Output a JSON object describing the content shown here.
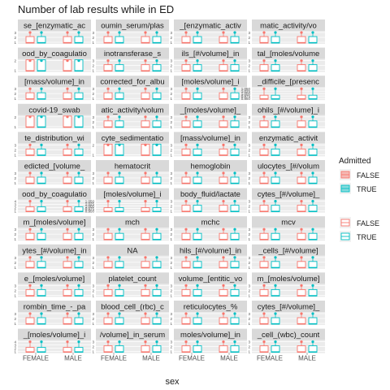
{
  "chart_data": {
    "type": "boxplot-facets",
    "title": "Number of lab results while in ED",
    "xlabel": "sex",
    "categories": [
      "FEMALE",
      "MALE"
    ],
    "groups": [
      "FALSE",
      "TRUE"
    ],
    "colors": {
      "FALSE": "#F8766D",
      "TRUE": "#00BFC4"
    },
    "legend": {
      "title": "Admitted",
      "position": "right",
      "items": [
        "FALSE",
        "TRUE"
      ]
    },
    "panels": [
      {
        "label": "se_[enzymatic_ac",
        "ticks": [
          "3",
          "2",
          "1"
        ]
      },
      {
        "label": "oumin_serum/plas",
        "ticks": [
          "3",
          "2",
          "1"
        ]
      },
      {
        "label": "_[enzymatic_activ",
        "ticks": [
          "3",
          "2",
          "1"
        ]
      },
      {
        "label": "matic_activity/vo",
        "ticks": [
          "3",
          "2",
          "1"
        ]
      },
      {
        "label": "ood_by_coagulatio",
        "ticks": [
          "2",
          "1"
        ]
      },
      {
        "label": "inotransferase_s",
        "ticks": [
          "3",
          "2",
          "1"
        ]
      },
      {
        "label": "ils_[#/volume]_in",
        "ticks": [
          "3",
          "2",
          "1"
        ]
      },
      {
        "label": "tal_[moles/volume",
        "ticks": [
          "3",
          "2",
          "1"
        ]
      },
      {
        "label": "[mass/volume]_in",
        "ticks": [
          "3",
          "2",
          "1"
        ]
      },
      {
        "label": "corrected_for_albu",
        "ticks": [
          "3",
          "2",
          "1"
        ]
      },
      {
        "label": "[moles/volume]_i",
        "ticks": [
          "3",
          "2",
          "1"
        ]
      },
      {
        "label": "_difficile_[presenc",
        "ticks": [
          "1.050",
          "1.025",
          "1.000",
          "0.975",
          "0.950"
        ]
      },
      {
        "label": "covid-19_swab",
        "ticks": [
          "2",
          "1"
        ]
      },
      {
        "label": "atic_activity/volum",
        "ticks": [
          "3",
          "2",
          "1"
        ]
      },
      {
        "label": "_[moles/volume]_",
        "ticks": [
          "3",
          "2",
          "1"
        ]
      },
      {
        "label": "ohils_[#/volume]_i",
        "ticks": [
          "3",
          "2",
          "1"
        ]
      },
      {
        "label": "te_distribution_wi",
        "ticks": [
          "3",
          "2",
          "1"
        ]
      },
      {
        "label": "cyte_sedimentatio",
        "ticks": [
          "2",
          "1"
        ]
      },
      {
        "label": "[mass/volume]_in",
        "ticks": [
          "3",
          "2",
          "1"
        ]
      },
      {
        "label": "enzymatic_activit",
        "ticks": [
          "3",
          "2",
          "1"
        ]
      },
      {
        "label": "edicted_[volume_",
        "ticks": [
          "3",
          "2",
          "1"
        ]
      },
      {
        "label": "hematocrit",
        "ticks": [
          "3",
          "2",
          "1"
        ]
      },
      {
        "label": "hemoglobin",
        "ticks": [
          "3",
          "2",
          "1"
        ]
      },
      {
        "label": "ulocytes_[#/volum",
        "ticks": [
          "3",
          "2",
          "1"
        ]
      },
      {
        "label": "ood_by_coagulatio",
        "ticks": [
          "4",
          "3",
          "2",
          "1"
        ]
      },
      {
        "label": "[moles/volume]_i",
        "ticks": [
          "1.050",
          "1.025",
          "1.000",
          "0.975",
          "0.950"
        ]
      },
      {
        "label": "body_fluid/lactate",
        "ticks": [
          "3",
          "2",
          "1"
        ]
      },
      {
        "label": "cytes_[#/volume]_",
        "ticks": [
          "3",
          "2",
          "1"
        ]
      },
      {
        "label": "m_[moles/volume]",
        "ticks": [
          "3",
          "2",
          "1"
        ]
      },
      {
        "label": "mch",
        "ticks": [
          "3",
          "2",
          "1"
        ]
      },
      {
        "label": "mchc",
        "ticks": [
          "3",
          "2",
          "1"
        ]
      },
      {
        "label": "mcv",
        "ticks": [
          "3",
          "2",
          "1"
        ]
      },
      {
        "label": "ytes_[#/volume]_in",
        "ticks": [
          "3",
          "2",
          "1"
        ]
      },
      {
        "label": "NA",
        "ticks": [
          "3",
          "2",
          "1"
        ]
      },
      {
        "label": "hils_[#/volume]_in",
        "ticks": [
          "3",
          "2",
          "1"
        ]
      },
      {
        "label": "_cells_[#/volume]",
        "ticks": [
          "3",
          "2",
          "1"
        ]
      },
      {
        "label": "e_[moles/volume]",
        "ticks": [
          "3",
          "2",
          "1"
        ]
      },
      {
        "label": "platelet_count",
        "ticks": [
          "3",
          "2",
          "1"
        ]
      },
      {
        "label": "volume_[entitic_vo",
        "ticks": [
          "3",
          "2",
          "1"
        ]
      },
      {
        "label": "m_[moles/volume]",
        "ticks": [
          "3",
          "2",
          "1"
        ]
      },
      {
        "label": "rombin_time_-_pa",
        "ticks": [
          "3",
          "2",
          "1"
        ]
      },
      {
        "label": "blood_cell_(rbc)_c",
        "ticks": [
          "3",
          "2",
          "1"
        ]
      },
      {
        "label": "reticulocytes_%",
        "ticks": [
          "3",
          "2",
          "1"
        ]
      },
      {
        "label": "cytes_[#/volume]_",
        "ticks": [
          "3",
          "2",
          "1"
        ]
      },
      {
        "label": "_[moles/volume]_i",
        "ticks": [
          "4",
          "3",
          "2",
          "1"
        ]
      },
      {
        "label": "/volume]_in_serum",
        "ticks": [
          "3",
          "2",
          "1"
        ]
      },
      {
        "label": "moles/volume]_in",
        "ticks": [
          "3",
          "2",
          "1"
        ]
      },
      {
        "label": "_cell_(wbc)_count",
        "ticks": [
          "3",
          "2",
          "1"
        ]
      }
    ]
  }
}
